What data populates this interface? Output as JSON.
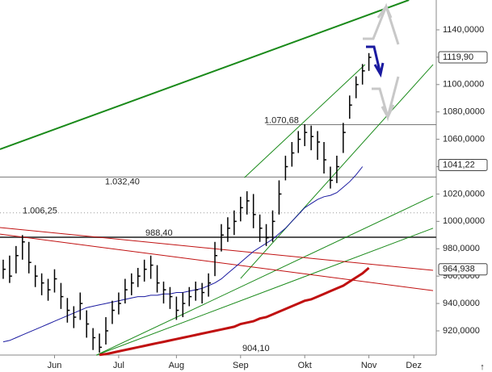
{
  "chart_data": {
    "type": "ohlc",
    "categories": [
      null,
      null,
      null,
      null,
      null,
      null,
      null,
      null,
      "Jun",
      null,
      null,
      null,
      null,
      null,
      null,
      null,
      null,
      null,
      "Jul",
      null,
      null,
      null,
      null,
      null,
      null,
      null,
      null,
      "Aug",
      null,
      null,
      null,
      null,
      null,
      null,
      null,
      null,
      null,
      "Sep",
      null,
      null,
      null,
      null,
      null,
      null,
      null,
      null,
      null,
      "Okt",
      null,
      null,
      null,
      null,
      null,
      null,
      null,
      null,
      null,
      "Nov",
      null,
      null,
      null,
      null,
      null,
      null,
      "Dez",
      null,
      null,
      null
    ],
    "high": [
      972,
      975,
      982,
      990,
      985,
      968,
      962,
      958,
      965,
      955,
      944,
      938,
      948,
      935,
      922,
      918,
      930,
      942,
      948,
      958,
      962,
      966,
      972,
      975,
      968,
      956,
      952,
      945,
      948,
      952,
      956,
      955,
      962,
      985,
      998,
      1003,
      1008,
      1018,
      1022,
      1020,
      1005,
      998,
      1008,
      1030,
      1048,
      1058,
      1066,
      1071,
      1070,
      1066,
      1058,
      1040,
      1048,
      1072,
      1092,
      1106,
      1115,
      1123,
      null,
      null,
      null,
      null,
      null,
      null,
      null,
      null,
      null,
      null
    ],
    "low": [
      958,
      955,
      962,
      972,
      962,
      952,
      946,
      942,
      948,
      936,
      926,
      922,
      928,
      915,
      906,
      904.1,
      910,
      925,
      932,
      940,
      946,
      952,
      956,
      958,
      948,
      940,
      936,
      928,
      930,
      938,
      942,
      940,
      945,
      960,
      978,
      985,
      990,
      1000,
      1005,
      995,
      985,
      982,
      985,
      1005,
      1030,
      1040,
      1050,
      1055,
      1052,
      1045,
      1035,
      1024,
      1028,
      1050,
      1075,
      1090,
      1100,
      1110,
      null,
      null,
      null,
      null,
      null,
      null,
      null,
      null,
      null,
      null
    ],
    "close": [
      965,
      960,
      975,
      985,
      970,
      960,
      955,
      950,
      958,
      945,
      935,
      930,
      940,
      925,
      915,
      908,
      920,
      935,
      940,
      950,
      955,
      960,
      965,
      968,
      955,
      950,
      945,
      935,
      940,
      945,
      950,
      948,
      955,
      975,
      990,
      995,
      1000,
      1010,
      1015,
      1005,
      995,
      988,
      1000,
      1020,
      1040,
      1050,
      1060,
      1065,
      1062,
      1058,
      1045,
      1030,
      1040,
      1065,
      1085,
      1100,
      1110,
      1119.9,
      null,
      null,
      null,
      null,
      null,
      null,
      null,
      null,
      null,
      null
    ],
    "bar_color": "#000000",
    "series": [
      {
        "color": "#1a1aa0",
        "values": [
          912,
          913,
          915,
          917,
          919,
          921,
          923,
          925,
          927,
          929,
          931,
          933,
          935,
          937,
          938,
          939,
          940,
          941,
          942,
          943,
          944,
          945,
          945,
          946,
          946,
          947,
          947,
          948,
          948,
          949,
          950,
          951,
          953,
          955,
          958,
          962,
          966,
          970,
          974,
          978,
          981,
          984,
          987,
          991,
          995,
          1000,
          1005,
          1010,
          1013,
          1016,
          1018,
          1019,
          1021,
          1025,
          1029,
          1034,
          1040,
          null,
          null,
          null,
          null,
          null,
          null,
          null,
          null,
          null,
          null,
          null
        ]
      },
      {
        "color": "#c01010",
        "values": [
          null,
          null,
          null,
          null,
          null,
          null,
          null,
          null,
          null,
          null,
          null,
          null,
          null,
          null,
          null,
          902.5,
          903,
          904,
          905,
          906,
          907,
          908,
          909,
          910,
          911,
          912,
          913,
          914,
          915,
          916,
          917,
          918,
          919,
          920,
          921,
          922,
          923,
          925,
          926,
          927,
          929,
          930,
          932,
          934,
          936,
          938,
          940,
          942,
          943,
          945,
          947,
          949,
          951,
          953,
          956,
          959,
          962,
          966,
          null,
          null,
          null,
          null,
          null,
          null,
          null,
          null,
          null,
          null
        ]
      }
    ],
    "trend_lines": [
      {
        "x": [
          -0.5,
          63.25
        ],
        "values": [
          1052.7,
          1161.8
        ],
        "color": "#1a8a1a",
        "width": 2
      },
      {
        "x": [
          37.6,
          56.4
        ],
        "values": [
          1032,
          1114.6
        ],
        "color": "#1a8a1a",
        "width": 1
      },
      {
        "x": [
          37,
          67
        ],
        "values": [
          958.3,
          1114.6
        ],
        "color": "#1a8a1a",
        "width": 1
      },
      {
        "x": [
          14.5,
          67
        ],
        "values": [
          902.2,
          1018.5
        ],
        "color": "#1a8a1a",
        "width": 1
      },
      {
        "x": [
          14.5,
          67
        ],
        "values": [
          902.2,
          995
        ],
        "color": "#1a8a1a",
        "width": 1
      },
      {
        "x": [
          -0.5,
          67
        ],
        "values": [
          995.5,
          964.2
        ],
        "color": "#c01010",
        "width": 1
      },
      {
        "x": [
          -0.5,
          67
        ],
        "values": [
          990.7,
          949.4
        ],
        "color": "#c01010",
        "width": 1
      }
    ],
    "levels": [
      {
        "value": 1070.68,
        "label": "1.070,68"
      },
      {
        "value": 1032.4,
        "label": "1.032,40"
      },
      {
        "value": 1006.25,
        "label": "1.006,25"
      },
      {
        "value": 988.4,
        "label": "988,40"
      },
      {
        "value": 904.1,
        "label": "904,10"
      }
    ],
    "price_boxes": [
      {
        "value": 1119.9,
        "label": "1119,90"
      },
      {
        "value": 1041.22,
        "label": "1041,22"
      },
      {
        "value": 964.938,
        "label": "964,938"
      }
    ],
    "ylim": [
      902.3,
      1161.8
    ],
    "yticks": [
      {
        "value": 920,
        "label": "920,0000"
      },
      {
        "value": 940,
        "label": "940,0000"
      },
      {
        "value": 960,
        "label": "960,0000"
      },
      {
        "value": 980,
        "label": "980,0000"
      },
      {
        "value": 1000,
        "label": "1000,0000"
      },
      {
        "value": 1020,
        "label": "1020,0000"
      },
      {
        "value": 1040,
        "label": "1040,0000"
      },
      {
        "value": 1060,
        "label": "1060,0000"
      },
      {
        "value": 1080,
        "label": "1080,0000"
      },
      {
        "value": 1100,
        "label": "1100,0000"
      },
      {
        "value": 1120,
        "label": "1120,0000"
      },
      {
        "value": 1140,
        "label": "1140,0000"
      }
    ]
  }
}
